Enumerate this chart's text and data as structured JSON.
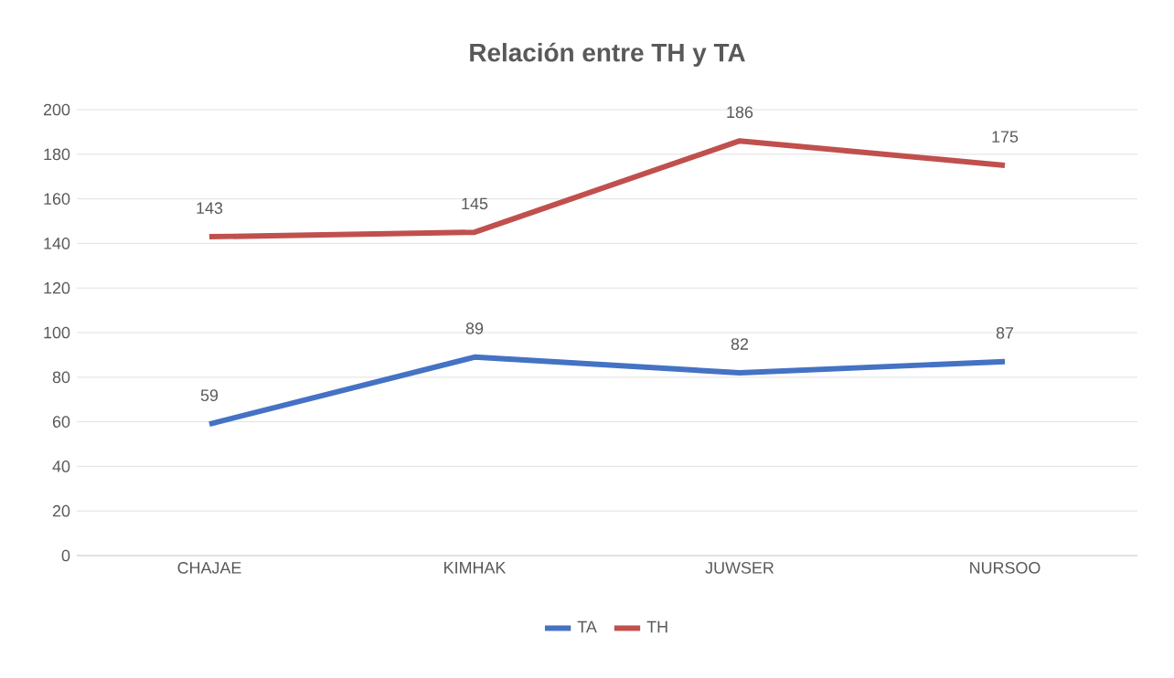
{
  "chart_data": {
    "type": "line",
    "title": "Relación entre TH y TA",
    "categories": [
      "CHAJAE",
      "KIMHAK",
      "JUWSER",
      "NURSOO"
    ],
    "series": [
      {
        "name": "TA",
        "color": "#4472c4",
        "values": [
          59,
          89,
          82,
          87
        ]
      },
      {
        "name": "TH",
        "color": "#c0504d",
        "values": [
          143,
          145,
          186,
          175
        ]
      }
    ],
    "ylim": [
      0,
      200
    ],
    "yticks": [
      0,
      20,
      40,
      60,
      80,
      100,
      120,
      140,
      160,
      180,
      200
    ],
    "grid": "y",
    "legend": "bottom",
    "data_labels": true,
    "marker": "none",
    "line_style": "solid"
  }
}
